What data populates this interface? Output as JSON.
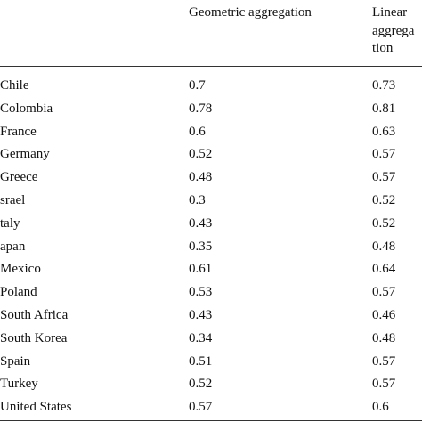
{
  "table": {
    "header": [
      "",
      "Geometric aggregation",
      [
        "Linear",
        "aggrega",
        "tion"
      ]
    ],
    "rows": [
      [
        "Chile",
        "0.7",
        "0.73"
      ],
      [
        "Colombia",
        "0.78",
        "0.81"
      ],
      [
        "France",
        "0.6",
        "0.63"
      ],
      [
        "Germany",
        "0.52",
        "0.57"
      ],
      [
        "Greece",
        "0.48",
        "0.57"
      ],
      [
        "srael",
        "0.3",
        "0.52"
      ],
      [
        "taly",
        "0.43",
        "0.52"
      ],
      [
        "apan",
        "0.35",
        "0.48"
      ],
      [
        "Mexico",
        "0.61",
        "0.64"
      ],
      [
        "Poland",
        "0.53",
        "0.57"
      ],
      [
        "South Africa",
        "0.43",
        "0.46"
      ],
      [
        "South Korea",
        "0.34",
        "0.48"
      ],
      [
        "Spain",
        "0.51",
        "0.57"
      ],
      [
        "Turkey",
        "0.52",
        "0.57"
      ],
      [
        "United States",
        "0.57",
        "0.6"
      ]
    ]
  }
}
